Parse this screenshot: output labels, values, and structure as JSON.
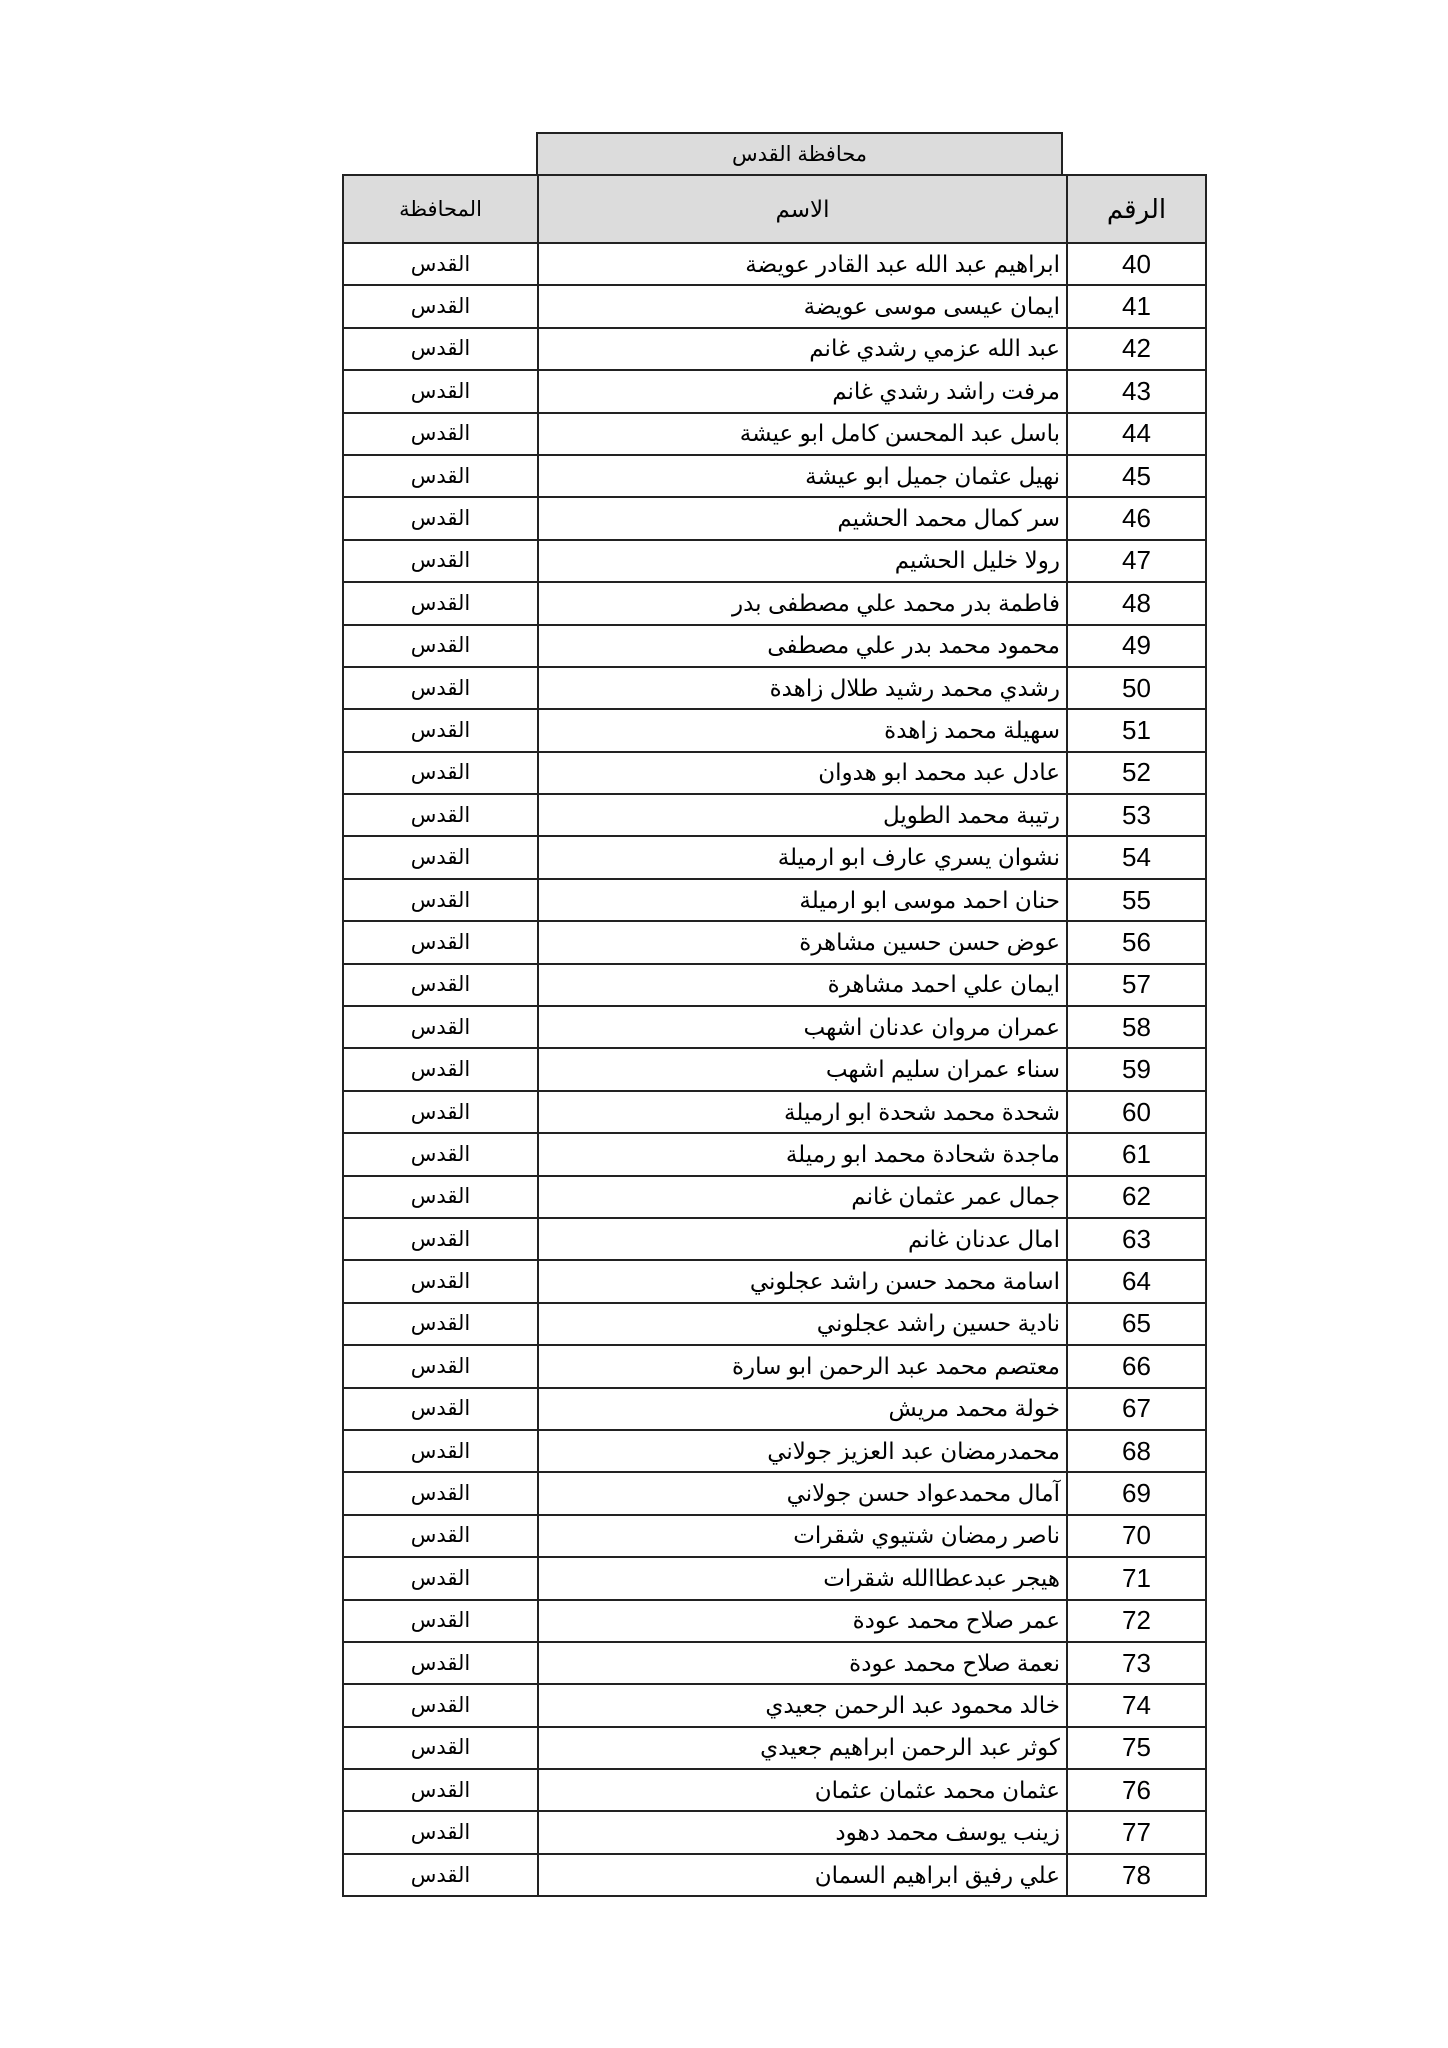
{
  "title": "محافظة القدس",
  "headers": {
    "number": "الرقم",
    "name": "الاسم",
    "governorate": "المحافظة"
  },
  "rows": [
    {
      "n": "40",
      "name": "ابراهيم عبد الله عبد القادر عويضة",
      "gov": "القدس"
    },
    {
      "n": "41",
      "name": "ايمان عيسى موسى عويضة",
      "gov": "القدس"
    },
    {
      "n": "42",
      "name": "عبد الله عزمي رشدي غانم",
      "gov": "القدس"
    },
    {
      "n": "43",
      "name": "مرفت راشد رشدي غانم",
      "gov": "القدس"
    },
    {
      "n": "44",
      "name": "باسل عبد المحسن كامل ابو عيشة",
      "gov": "القدس"
    },
    {
      "n": "45",
      "name": "نهيل عثمان جميل ابو عيشة",
      "gov": "القدس"
    },
    {
      "n": "46",
      "name": "سر كمال محمد الحشيم",
      "gov": "القدس"
    },
    {
      "n": "47",
      "name": "رولا خليل الحشيم",
      "gov": "القدس"
    },
    {
      "n": "48",
      "name": "فاطمة بدر محمد علي مصطفى بدر",
      "gov": "القدس"
    },
    {
      "n": "49",
      "name": "محمود محمد بدر علي مصطفى",
      "gov": "القدس"
    },
    {
      "n": "50",
      "name": "رشدي محمد رشيد طلال زاهدة",
      "gov": "القدس"
    },
    {
      "n": "51",
      "name": "سهيلة محمد زاهدة",
      "gov": "القدس"
    },
    {
      "n": "52",
      "name": "عادل عبد محمد ابو هدوان",
      "gov": "القدس"
    },
    {
      "n": "53",
      "name": "رتيبة محمد الطويل",
      "gov": "القدس"
    },
    {
      "n": "54",
      "name": "نشوان يسري عارف ابو ارميلة",
      "gov": "القدس"
    },
    {
      "n": "55",
      "name": "حنان احمد موسى ابو ارميلة",
      "gov": "القدس"
    },
    {
      "n": "56",
      "name": "عوض حسن حسين مشاهرة",
      "gov": "القدس"
    },
    {
      "n": "57",
      "name": "ايمان علي احمد مشاهرة",
      "gov": "القدس"
    },
    {
      "n": "58",
      "name": "عمران مروان عدنان اشهب",
      "gov": "القدس"
    },
    {
      "n": "59",
      "name": "سناء عمران سليم اشهب",
      "gov": "القدس"
    },
    {
      "n": "60",
      "name": "شحدة محمد شحدة ابو ارميلة",
      "gov": "القدس"
    },
    {
      "n": "61",
      "name": "ماجدة شحادة محمد ابو رميلة",
      "gov": "القدس"
    },
    {
      "n": "62",
      "name": "جمال عمر عثمان غانم",
      "gov": "القدس"
    },
    {
      "n": "63",
      "name": "امال عدنان غانم",
      "gov": "القدس"
    },
    {
      "n": "64",
      "name": "اسامة محمد حسن راشد عجلوني",
      "gov": "القدس"
    },
    {
      "n": "65",
      "name": "نادية حسين راشد عجلوني",
      "gov": "القدس"
    },
    {
      "n": "66",
      "name": "معتصم محمد عبد الرحمن ابو سارة",
      "gov": "القدس"
    },
    {
      "n": "67",
      "name": "خولة محمد مريش",
      "gov": "القدس"
    },
    {
      "n": "68",
      "name": "محمدرمضان عبد العزيز جولاني",
      "gov": "القدس"
    },
    {
      "n": "69",
      "name": "آمال محمدعواد حسن جولاني",
      "gov": "القدس"
    },
    {
      "n": "70",
      "name": "ناصر رمضان شتيوي شقرات",
      "gov": "القدس"
    },
    {
      "n": "71",
      "name": "هيجر عبدعطاالله شقرات",
      "gov": "القدس"
    },
    {
      "n": "72",
      "name": "عمر صلاح محمد عودة",
      "gov": "القدس"
    },
    {
      "n": "73",
      "name": "نعمة صلاح محمد عودة",
      "gov": "القدس"
    },
    {
      "n": "74",
      "name": "خالد محمود عبد الرحمن جعيدي",
      "gov": "القدس"
    },
    {
      "n": "75",
      "name": "كوثر عبد الرحمن ابراهيم جعيدي",
      "gov": "القدس"
    },
    {
      "n": "76",
      "name": "عثمان محمد عثمان عثمان",
      "gov": "القدس"
    },
    {
      "n": "77",
      "name": "زينب يوسف محمد دهود",
      "gov": "القدس"
    },
    {
      "n": "78",
      "name": "علي رفيق ابراهيم السمان",
      "gov": "القدس"
    }
  ]
}
